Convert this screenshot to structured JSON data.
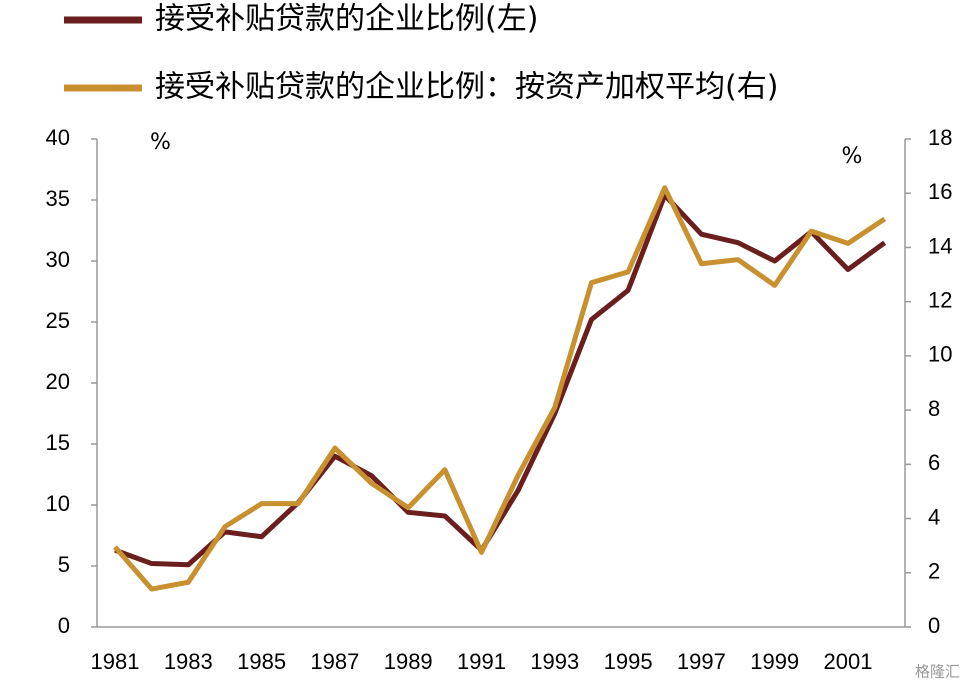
{
  "chart_data": {
    "type": "line",
    "categories": [
      "1981",
      null,
      "1983",
      null,
      "1985",
      null,
      "1987",
      null,
      "1989",
      null,
      "1991",
      null,
      "1993",
      null,
      "1995",
      null,
      "1997",
      null,
      "1999",
      null,
      "2001",
      null
    ],
    "series": [
      {
        "name": "接受补贴贷款的企业比例(左)",
        "color": "#6b1e1e",
        "axis": "y",
        "values": [
          6.3,
          5.2,
          5.1,
          7.8,
          7.4,
          10.2,
          14.0,
          12.4,
          9.4,
          9.1,
          6.3,
          11.2,
          17.5,
          25.2,
          27.6,
          35.4,
          32.2,
          31.5,
          30.0,
          32.4,
          29.3,
          31.5
        ]
      },
      {
        "name": "接受补贴贷款的企业比例：按资产加权平均(右)",
        "color": "#c8902e",
        "axis": "y2",
        "values": [
          2.95,
          1.4,
          1.65,
          3.7,
          4.55,
          4.55,
          6.6,
          5.3,
          4.4,
          5.8,
          2.75,
          5.6,
          8.1,
          12.7,
          13.1,
          16.2,
          13.4,
          13.55,
          12.6,
          14.6,
          14.15,
          15.05
        ]
      }
    ],
    "y_unit": "%",
    "y2_unit": "%",
    "ylim": [
      0,
      40
    ],
    "yticks": [
      0,
      5,
      10,
      15,
      20,
      25,
      30,
      35,
      40
    ],
    "y2lim": [
      0,
      18
    ],
    "y2ticks": [
      0,
      2,
      4,
      6,
      8,
      10,
      12,
      14,
      16,
      18
    ],
    "watermark": "格隆汇"
  }
}
